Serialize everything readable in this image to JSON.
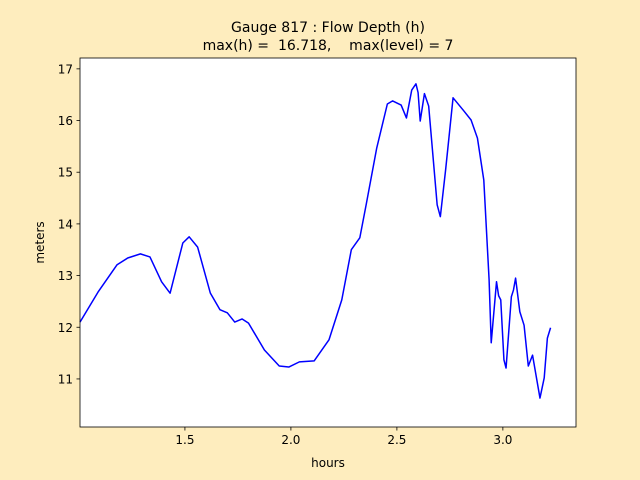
{
  "chart_data": {
    "type": "line",
    "title": "Gauge 817 : Flow Depth (h)",
    "subtitle": "max(h) =  16.718,    max(level) = 7",
    "xlabel": "hours",
    "ylabel": "meters",
    "xlim": [
      1.005,
      3.345
    ],
    "ylim": [
      10.07,
      17.21
    ],
    "xticks": [
      1.5,
      {
        "value": 2.0,
        "label": "2.0"
      },
      2.5,
      {
        "value": 3.0,
        "label": "3.0"
      }
    ],
    "yticks": [
      11,
      12,
      13,
      14,
      15,
      16,
      17
    ],
    "series": [
      {
        "color": "#0000ff",
        "x": [
          1.005,
          1.09,
          1.18,
          1.23,
          1.29,
          1.335,
          1.39,
          1.43,
          1.49,
          1.52,
          1.56,
          1.62,
          1.665,
          1.7,
          1.735,
          1.77,
          1.8,
          1.875,
          1.945,
          1.99,
          2.04,
          2.11,
          2.18,
          2.24,
          2.285,
          2.325,
          2.355,
          2.405,
          2.455,
          2.48,
          2.52,
          2.545,
          2.57,
          2.59,
          2.6,
          2.61,
          2.63,
          2.65,
          2.69,
          2.705,
          2.73,
          2.765,
          2.815,
          2.85,
          2.88,
          2.91,
          2.935,
          2.945,
          2.97,
          2.98,
          2.99,
          3.005,
          3.015,
          3.04,
          3.05,
          3.06,
          3.08,
          3.1,
          3.12,
          3.14,
          3.175,
          3.195,
          3.21,
          3.225
        ],
        "values": [
          12.1,
          12.68,
          13.21,
          13.34,
          13.42,
          13.36,
          12.88,
          12.66,
          13.63,
          13.75,
          13.55,
          12.66,
          12.34,
          12.28,
          12.1,
          12.16,
          12.08,
          11.56,
          11.25,
          11.23,
          11.33,
          11.35,
          11.76,
          12.53,
          13.5,
          13.73,
          14.37,
          15.47,
          16.32,
          16.38,
          16.3,
          16.05,
          16.59,
          16.71,
          16.54,
          15.99,
          16.52,
          16.28,
          14.37,
          14.14,
          15.05,
          16.44,
          16.19,
          16.01,
          15.66,
          14.85,
          12.92,
          11.7,
          12.88,
          12.61,
          12.53,
          11.37,
          11.21,
          12.59,
          12.72,
          12.95,
          12.3,
          12.04,
          11.25,
          11.46,
          10.63,
          11.02,
          11.79,
          11.99
        ]
      }
    ]
  }
}
